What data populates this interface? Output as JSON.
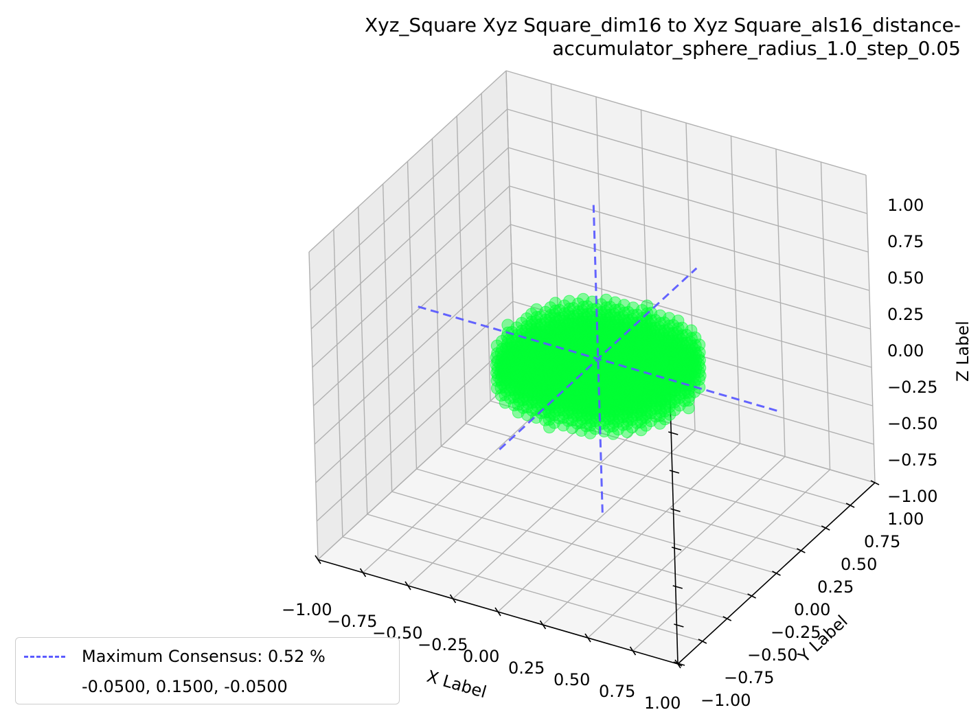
{
  "chart_data": {
    "type": "scatter",
    "projection": "3d",
    "title_lines": [
      "Xyz_Square Xyz Square_dim16 to Xyz Square_als16_distance-",
      "accumulator_sphere_radius_1.0_step_0.05"
    ],
    "xlabel": "X Label",
    "ylabel": "Y Label",
    "zlabel": "Z Label",
    "xlim": [
      -1.0,
      1.0
    ],
    "ylim": [
      -1.0,
      1.0
    ],
    "zlim": [
      -1.0,
      1.0
    ],
    "x_ticks": [
      "−1.00",
      "−0.75",
      "−0.50",
      "−0.25",
      "0.00",
      "0.25",
      "0.50",
      "0.75",
      "1.00"
    ],
    "y_ticks": [
      "−1.00",
      "−0.75",
      "−0.50",
      "−0.25",
      "0.00",
      "0.25",
      "0.50",
      "0.75",
      "1.00"
    ],
    "z_ticks": [
      "−1.00",
      "−0.75",
      "−0.50",
      "−0.25",
      "0.00",
      "0.25",
      "0.50",
      "0.75",
      "1.00"
    ],
    "grid": true,
    "series": [
      {
        "kind": "scatter-disc",
        "color": "#00ff33",
        "center": [
          -0.05,
          0.15,
          -0.05
        ],
        "radius": 0.5,
        "step": 0.05,
        "z_range": [
          -0.2,
          0.0
        ]
      },
      {
        "kind": "consensus-lines",
        "name": "Maximum Consensus: 0.52 %",
        "color": "#5b5bff",
        "style": "dashed",
        "point": [
          -0.05,
          0.15,
          -0.05
        ],
        "extent": 1.0
      }
    ],
    "legend": {
      "placement": "lower-left",
      "entries": [
        {
          "label": "Maximum Consensus: 0.52 %",
          "marker": "dashed-line",
          "color": "#5b5bff"
        },
        {
          "label": "-0.0500, 0.1500, -0.0500",
          "marker": "none"
        }
      ]
    }
  }
}
